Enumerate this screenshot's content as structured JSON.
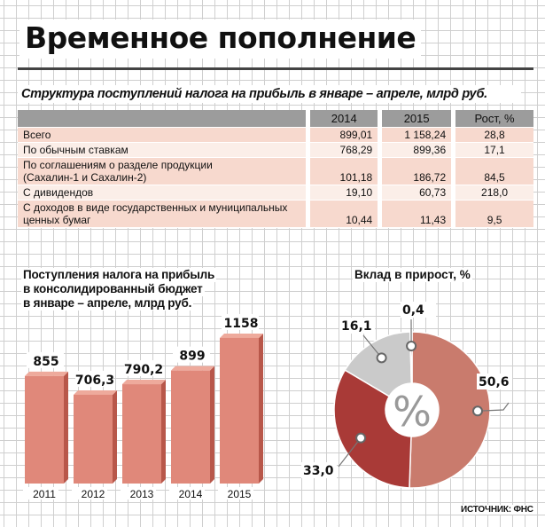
{
  "title": "Временное пополнение",
  "table": {
    "caption": "Структура поступлений налога на прибыль в январе – апреле, млрд руб.",
    "headers": [
      "",
      "2014",
      "2015",
      "Рост, %"
    ],
    "rows": [
      {
        "label": [
          "Всего"
        ],
        "v2014": "899,01",
        "v2015": "1 158,24",
        "growth": "28,8"
      },
      {
        "label": [
          "По обычным ставкам"
        ],
        "v2014": "768,29",
        "v2015": "899,36",
        "growth": "17,1"
      },
      {
        "label": [
          "По соглашениям о разделе продукции",
          "(Сахалин-1 и Сахалин-2)"
        ],
        "v2014": "101,18",
        "v2015": "186,72",
        "growth": "84,5"
      },
      {
        "label": [
          "С дивидендов"
        ],
        "v2014": "19,10",
        "v2015": "60,73",
        "growth": "218,0"
      },
      {
        "label": [
          "С доходов в виде государственных и муниципальных",
          "ценных бумаг"
        ],
        "v2014": "10,44",
        "v2015": "11,43",
        "growth": "9,5"
      }
    ]
  },
  "source": "ИСТОЧНИК: ФНС",
  "chart_data": [
    {
      "type": "bar",
      "title": [
        "Поступления налога на прибыль",
        "в консолидированный бюджет",
        "в январе – апреле, млрд руб."
      ],
      "categories": [
        "2011",
        "2012",
        "2013",
        "2014",
        "2015"
      ],
      "values": [
        855,
        706.3,
        790.2,
        899,
        1158
      ],
      "value_labels": [
        "855",
        "706,3",
        "790,2",
        "899",
        "1158"
      ],
      "color": "#e0887a",
      "color_dark": "#b8574a"
    },
    {
      "type": "pie",
      "title": "Вклад в прирост, %",
      "center_label": "%",
      "slices": [
        {
          "value": 50.6,
          "label": "50,6",
          "color": "#c97b6d"
        },
        {
          "value": 33.0,
          "label": "33,0",
          "color": "#a93a37"
        },
        {
          "value": 16.1,
          "label": "16,1",
          "color": "#cacaca"
        },
        {
          "value": 0.4,
          "label": "0,4",
          "color": "#8a1a1a"
        }
      ]
    }
  ]
}
